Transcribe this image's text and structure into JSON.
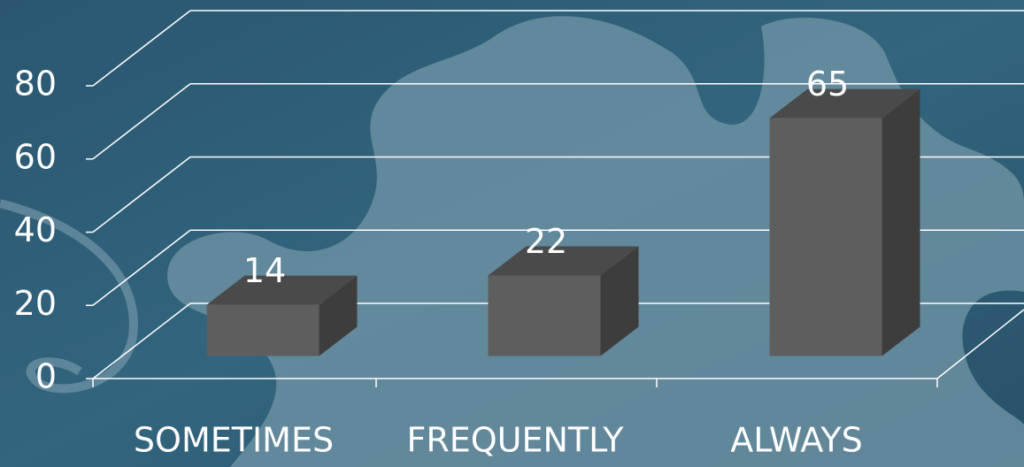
{
  "chart_data": {
    "type": "bar3d",
    "categories": [
      "SOMETIMES",
      "FREQUENTLY",
      "ALWAYS"
    ],
    "values": [
      14,
      22,
      65
    ],
    "color": "#5e5e5e",
    "ylim": [
      0,
      80
    ],
    "yticks": [
      0,
      20,
      40,
      60,
      80
    ],
    "grid": true
  }
}
